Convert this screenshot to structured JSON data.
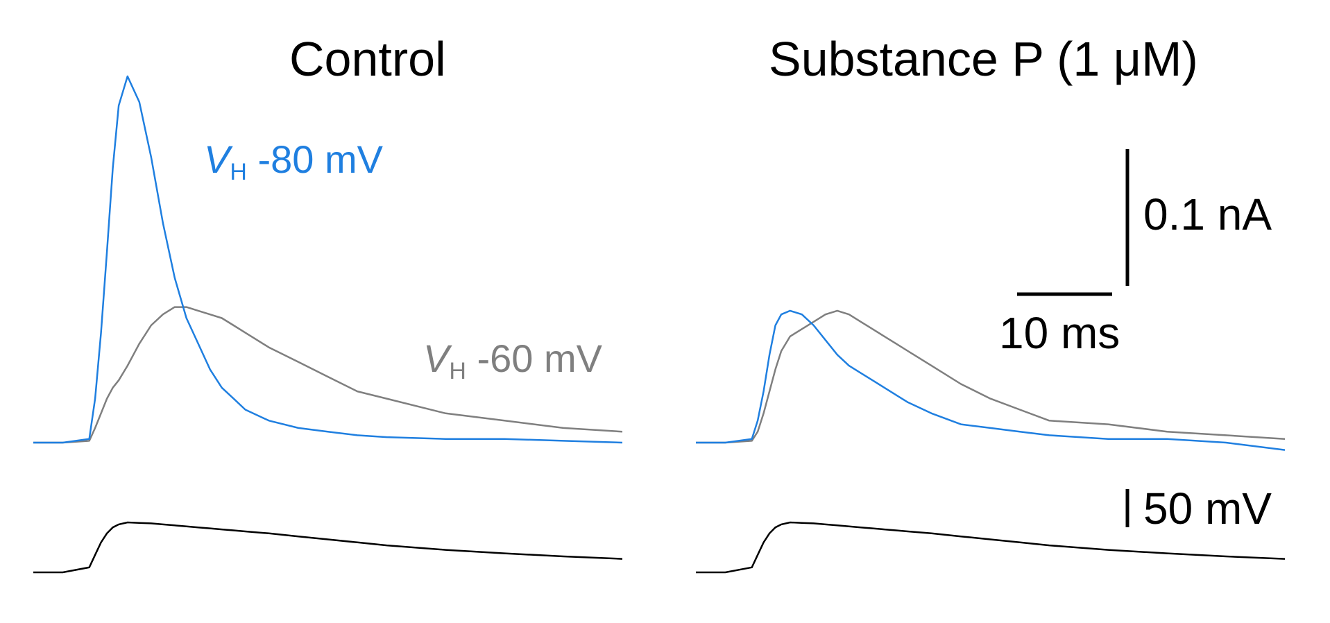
{
  "panels": [
    {
      "title": "Control"
    },
    {
      "title": "Substance P (1 μM)"
    }
  ],
  "labels": {
    "vh80": {
      "prefix": "V",
      "sub": "H",
      "value": " -80 mV",
      "color": "#1f7fe0"
    },
    "vh60": {
      "prefix": "V",
      "sub": "H",
      "value": " -60 mV",
      "color": "#7f7f7f"
    }
  },
  "scalebars": {
    "current": "0.1 nA",
    "time": "10 ms",
    "voltage": "50 mV"
  },
  "chart_data": [
    {
      "type": "line",
      "title": "Control",
      "xunit": "ms",
      "x": [
        0,
        5,
        9.5,
        10.5,
        11.5,
        12.5,
        13.5,
        14.5,
        16,
        18,
        20,
        22,
        24,
        26,
        28,
        30,
        32,
        34,
        36,
        40,
        45,
        50,
        55,
        60,
        70,
        80,
        90,
        100
      ],
      "series": [
        {
          "name": "V_H -80 mV",
          "color": "#1f7fe0",
          "values": [
            0,
            0,
            0.01,
            0.12,
            0.3,
            0.52,
            0.75,
            0.92,
            1.0,
            0.93,
            0.78,
            0.6,
            0.45,
            0.34,
            0.27,
            0.2,
            0.15,
            0.12,
            0.09,
            0.06,
            0.04,
            0.03,
            0.02,
            0.015,
            0.01,
            0.01,
            0.005,
            0.0
          ]
        },
        {
          "name": "V_H -60 mV",
          "color": "#7f7f7f",
          "values": [
            0,
            0,
            0.005,
            0.04,
            0.08,
            0.12,
            0.15,
            0.17,
            0.21,
            0.27,
            0.32,
            0.35,
            0.37,
            0.37,
            0.36,
            0.35,
            0.34,
            0.32,
            0.3,
            0.26,
            0.22,
            0.18,
            0.14,
            0.12,
            0.08,
            0.06,
            0.04,
            0.03
          ]
        }
      ],
      "command": [
        0,
        0,
        0.1,
        0.35,
        0.6,
        0.78,
        0.9,
        0.96,
        1.0,
        0.99,
        0.98,
        0.96,
        0.94,
        0.92,
        0.9,
        0.88,
        0.86,
        0.84,
        0.82,
        0.78,
        0.72,
        0.66,
        0.6,
        0.54,
        0.45,
        0.38,
        0.32,
        0.27
      ]
    },
    {
      "type": "line",
      "title": "Substance P (1 μM)",
      "xunit": "ms",
      "x": [
        0,
        5,
        9.5,
        10.5,
        11.5,
        12.5,
        13.5,
        14.5,
        16,
        18,
        20,
        22,
        24,
        26,
        28,
        30,
        32,
        34,
        36,
        40,
        45,
        50,
        55,
        60,
        70,
        80,
        90,
        100
      ],
      "series": [
        {
          "name": "V_H -80 mV",
          "color": "#1f7fe0",
          "values": [
            0,
            0,
            0.01,
            0.06,
            0.14,
            0.24,
            0.32,
            0.35,
            0.36,
            0.35,
            0.32,
            0.28,
            0.24,
            0.21,
            0.19,
            0.17,
            0.15,
            0.13,
            0.11,
            0.08,
            0.05,
            0.04,
            0.03,
            0.02,
            0.01,
            0.01,
            0.0,
            -0.02
          ]
        },
        {
          "name": "V_H -60 mV",
          "color": "#7f7f7f",
          "values": [
            0,
            0,
            0.005,
            0.03,
            0.08,
            0.14,
            0.2,
            0.25,
            0.29,
            0.31,
            0.33,
            0.35,
            0.36,
            0.35,
            0.33,
            0.31,
            0.29,
            0.27,
            0.25,
            0.21,
            0.16,
            0.12,
            0.09,
            0.06,
            0.05,
            0.03,
            0.02,
            0.01
          ]
        }
      ],
      "command": [
        0,
        0,
        0.1,
        0.35,
        0.6,
        0.78,
        0.9,
        0.96,
        1.0,
        0.99,
        0.98,
        0.96,
        0.94,
        0.92,
        0.9,
        0.88,
        0.86,
        0.84,
        0.82,
        0.78,
        0.72,
        0.66,
        0.6,
        0.54,
        0.45,
        0.38,
        0.32,
        0.27
      ]
    }
  ]
}
